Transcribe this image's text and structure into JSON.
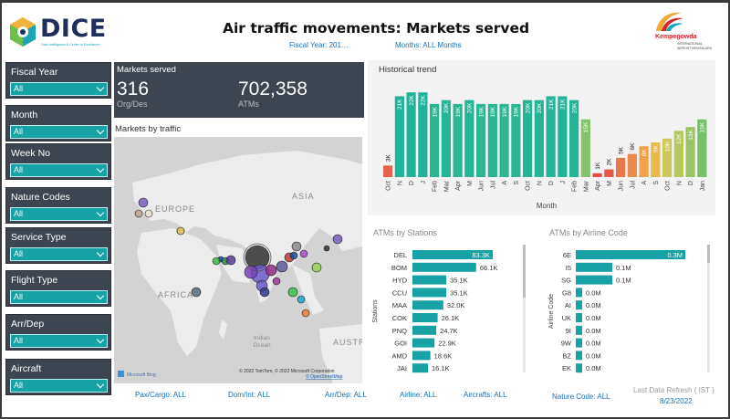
{
  "header": {
    "brand": "DICE",
    "tagline": "Data Intelligence & Center of Excellence",
    "title": "Air traffic movements: Markets served",
    "fiscal_year_label": "Fiscal Year: 201…",
    "months_label": "Months: ALL Months",
    "airport_brand": "Kempegowda",
    "airport_sub": "INTERNATIONAL AIRPORT BENGALURU"
  },
  "slicers": [
    {
      "label": "Fiscal Year",
      "value": "All"
    },
    {
      "label": "Month",
      "value": "All"
    },
    {
      "label": "Week No",
      "value": "All"
    },
    {
      "label": "Nature Codes",
      "value": "All"
    },
    {
      "label": "Service Type",
      "value": "All"
    },
    {
      "label": "Flight Type",
      "value": "All"
    },
    {
      "label": "Arr/Dep",
      "value": "All"
    },
    {
      "label": "Aircraft",
      "value": "All"
    }
  ],
  "kpi": {
    "title": "Markets served",
    "markets_value": "316",
    "markets_sub": "Org/Des",
    "atms_value": "702,358",
    "atms_sub": "ATMs"
  },
  "map": {
    "title": "Markets by traffic",
    "labels": {
      "europe": "EUROPE",
      "asia": "ASIA",
      "africa": "AFRICA",
      "indian_ocean": "Indian\nOcean",
      "australia": "AUSTR"
    },
    "attribution": "© 2022 TomTom, © 2022 Microsoft Corporation",
    "osm": "© OpenStreetMap",
    "bing": "Microsoft Bing"
  },
  "chart_data": [
    {
      "type": "bar",
      "title": "Historical trend",
      "xlabel": "Month",
      "categories": [
        "Oct",
        "N",
        "D",
        "J",
        "Feb",
        "Mar",
        "Apr",
        "M",
        "Jun",
        "Jul",
        "A",
        "S",
        "Oct",
        "N",
        "D",
        "J",
        "Feb",
        "Mar",
        "Apr",
        "M",
        "Jun",
        "Jul",
        "A",
        "S",
        "Oct",
        "N",
        "D",
        "Jan"
      ],
      "values": [
        3,
        21,
        22,
        22,
        19,
        20,
        19,
        20,
        19,
        19,
        19,
        19,
        20,
        20,
        21,
        21,
        20,
        15,
        1,
        2,
        5,
        6,
        8,
        9,
        10,
        12,
        13,
        15
      ],
      "labels": [
        "3K",
        "21K",
        "22K",
        "22K",
        "19K",
        "20K",
        "19K",
        "20K",
        "19K",
        "19K",
        "19K",
        "19K",
        "20K",
        "20K",
        "21K",
        "21K",
        "20K",
        "15K",
        "1K",
        "2K",
        "5K",
        "6K",
        "8K",
        "9K",
        "10K",
        "12K",
        "13K",
        "15K"
      ],
      "colors": [
        "#e8614c",
        "#20b39a",
        "#20b39a",
        "#20b39a",
        "#2bb593",
        "#26b496",
        "#2bb593",
        "#26b496",
        "#2bb593",
        "#2bb593",
        "#2bb593",
        "#2bb593",
        "#26b496",
        "#26b496",
        "#22b399",
        "#22b399",
        "#26b496",
        "#84c26d",
        "#e84a47",
        "#e6584a",
        "#e8784a",
        "#ea8a4a",
        "#f0a24a",
        "#e8b94d",
        "#cfc65a",
        "#b3c85f",
        "#9bc565",
        "#79c06e"
      ],
      "ylim": [
        0,
        23
      ]
    },
    {
      "type": "bar",
      "title": "ATMs by Stations",
      "ylabel": "Stations",
      "categories": [
        "DEL",
        "BOM",
        "HYD",
        "CCU",
        "MAA",
        "COK",
        "PNQ",
        "GOI",
        "AMD",
        "JAI"
      ],
      "values": [
        83.3,
        66.1,
        35.1,
        35.1,
        32.0,
        26.1,
        24.7,
        22.9,
        18.6,
        16.1
      ],
      "labels": [
        "83.3K",
        "66.1K",
        "35.1K",
        "35.1K",
        "32.0K",
        "26.1K",
        "24.7K",
        "22.9K",
        "18.6K",
        "16.1K"
      ],
      "color": "#17a3a6"
    },
    {
      "type": "bar",
      "title": "ATMs by Airline Code",
      "ylabel": "Airline Code",
      "categories": [
        "6E",
        "I5",
        "SG",
        "G8",
        "AI",
        "UK",
        "9I",
        "9W",
        "BZ",
        "EK"
      ],
      "values": [
        0.3,
        0.1,
        0.1,
        0.0,
        0.0,
        0.0,
        0.0,
        0.0,
        0.0,
        0.0
      ],
      "labels": [
        "0.3M",
        "0.1M",
        "0.1M",
        "0.0M",
        "0.0M",
        "0.0M",
        "0.0M",
        "0.0M",
        "0.0M",
        "0.0M"
      ],
      "color": "#17a3a6"
    }
  ],
  "footer": {
    "pax_cargo": "Pax/Cargo: ALL",
    "dom_int": "Dom/Int: ALL",
    "arr_dep": "Arr/Dep: ALL",
    "airline": "Airline: ALL",
    "aircrafts": "Aircrafts: ALL",
    "nature_code": "Nature Code: ALL",
    "refresh_label": "Last Data Refresh  ( IST )",
    "refresh_date": "8/23/2022"
  }
}
